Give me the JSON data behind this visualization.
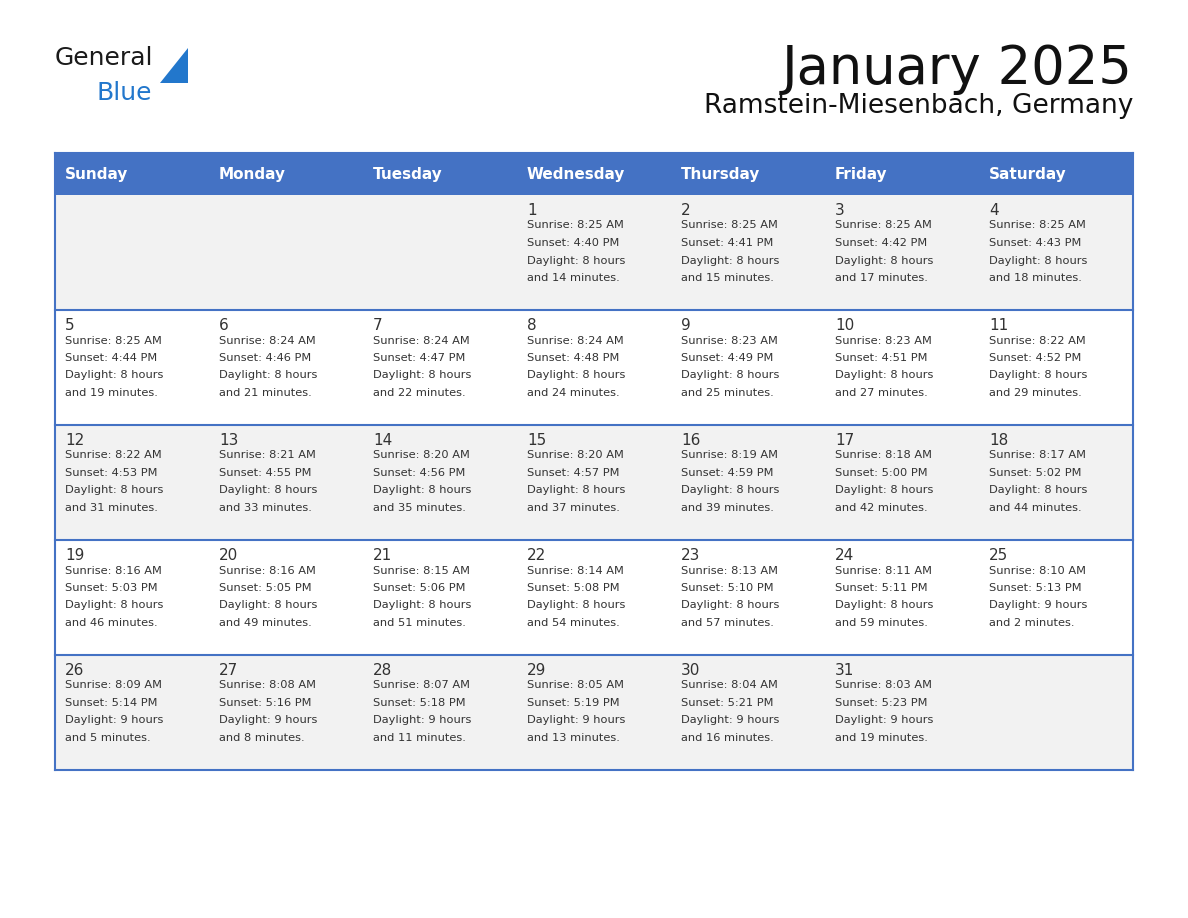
{
  "title": "January 2025",
  "subtitle": "Ramstein-Miesenbach, Germany",
  "days_of_week": [
    "Sunday",
    "Monday",
    "Tuesday",
    "Wednesday",
    "Thursday",
    "Friday",
    "Saturday"
  ],
  "header_bg": "#4472C4",
  "header_text": "#FFFFFF",
  "row_bg": [
    "#F2F2F2",
    "#FFFFFF",
    "#F2F2F2",
    "#FFFFFF",
    "#F2F2F2"
  ],
  "cell_border": "#4472C4",
  "row_border": "#4472C4",
  "day_num_color": "#333333",
  "text_color": "#333333",
  "logo_general_color": "#1a1a1a",
  "logo_blue_color": "#2277CC",
  "logo_triangle_color": "#2277CC",
  "calendar_data": [
    [
      null,
      null,
      null,
      {
        "day": 1,
        "sunrise": "8:25 AM",
        "sunset": "4:40 PM",
        "daylight": "8 hours and 14 minutes."
      },
      {
        "day": 2,
        "sunrise": "8:25 AM",
        "sunset": "4:41 PM",
        "daylight": "8 hours and 15 minutes."
      },
      {
        "day": 3,
        "sunrise": "8:25 AM",
        "sunset": "4:42 PM",
        "daylight": "8 hours and 17 minutes."
      },
      {
        "day": 4,
        "sunrise": "8:25 AM",
        "sunset": "4:43 PM",
        "daylight": "8 hours and 18 minutes."
      }
    ],
    [
      {
        "day": 5,
        "sunrise": "8:25 AM",
        "sunset": "4:44 PM",
        "daylight": "8 hours and 19 minutes."
      },
      {
        "day": 6,
        "sunrise": "8:24 AM",
        "sunset": "4:46 PM",
        "daylight": "8 hours and 21 minutes."
      },
      {
        "day": 7,
        "sunrise": "8:24 AM",
        "sunset": "4:47 PM",
        "daylight": "8 hours and 22 minutes."
      },
      {
        "day": 8,
        "sunrise": "8:24 AM",
        "sunset": "4:48 PM",
        "daylight": "8 hours and 24 minutes."
      },
      {
        "day": 9,
        "sunrise": "8:23 AM",
        "sunset": "4:49 PM",
        "daylight": "8 hours and 25 minutes."
      },
      {
        "day": 10,
        "sunrise": "8:23 AM",
        "sunset": "4:51 PM",
        "daylight": "8 hours and 27 minutes."
      },
      {
        "day": 11,
        "sunrise": "8:22 AM",
        "sunset": "4:52 PM",
        "daylight": "8 hours and 29 minutes."
      }
    ],
    [
      {
        "day": 12,
        "sunrise": "8:22 AM",
        "sunset": "4:53 PM",
        "daylight": "8 hours and 31 minutes."
      },
      {
        "day": 13,
        "sunrise": "8:21 AM",
        "sunset": "4:55 PM",
        "daylight": "8 hours and 33 minutes."
      },
      {
        "day": 14,
        "sunrise": "8:20 AM",
        "sunset": "4:56 PM",
        "daylight": "8 hours and 35 minutes."
      },
      {
        "day": 15,
        "sunrise": "8:20 AM",
        "sunset": "4:57 PM",
        "daylight": "8 hours and 37 minutes."
      },
      {
        "day": 16,
        "sunrise": "8:19 AM",
        "sunset": "4:59 PM",
        "daylight": "8 hours and 39 minutes."
      },
      {
        "day": 17,
        "sunrise": "8:18 AM",
        "sunset": "5:00 PM",
        "daylight": "8 hours and 42 minutes."
      },
      {
        "day": 18,
        "sunrise": "8:17 AM",
        "sunset": "5:02 PM",
        "daylight": "8 hours and 44 minutes."
      }
    ],
    [
      {
        "day": 19,
        "sunrise": "8:16 AM",
        "sunset": "5:03 PM",
        "daylight": "8 hours and 46 minutes."
      },
      {
        "day": 20,
        "sunrise": "8:16 AM",
        "sunset": "5:05 PM",
        "daylight": "8 hours and 49 minutes."
      },
      {
        "day": 21,
        "sunrise": "8:15 AM",
        "sunset": "5:06 PM",
        "daylight": "8 hours and 51 minutes."
      },
      {
        "day": 22,
        "sunrise": "8:14 AM",
        "sunset": "5:08 PM",
        "daylight": "8 hours and 54 minutes."
      },
      {
        "day": 23,
        "sunrise": "8:13 AM",
        "sunset": "5:10 PM",
        "daylight": "8 hours and 57 minutes."
      },
      {
        "day": 24,
        "sunrise": "8:11 AM",
        "sunset": "5:11 PM",
        "daylight": "8 hours and 59 minutes."
      },
      {
        "day": 25,
        "sunrise": "8:10 AM",
        "sunset": "5:13 PM",
        "daylight": "9 hours and 2 minutes."
      }
    ],
    [
      {
        "day": 26,
        "sunrise": "8:09 AM",
        "sunset": "5:14 PM",
        "daylight": "9 hours and 5 minutes."
      },
      {
        "day": 27,
        "sunrise": "8:08 AM",
        "sunset": "5:16 PM",
        "daylight": "9 hours and 8 minutes."
      },
      {
        "day": 28,
        "sunrise": "8:07 AM",
        "sunset": "5:18 PM",
        "daylight": "9 hours and 11 minutes."
      },
      {
        "day": 29,
        "sunrise": "8:05 AM",
        "sunset": "5:19 PM",
        "daylight": "9 hours and 13 minutes."
      },
      {
        "day": 30,
        "sunrise": "8:04 AM",
        "sunset": "5:21 PM",
        "daylight": "9 hours and 16 minutes."
      },
      {
        "day": 31,
        "sunrise": "8:03 AM",
        "sunset": "5:23 PM",
        "daylight": "9 hours and 19 minutes."
      },
      null
    ]
  ],
  "fig_width": 11.88,
  "fig_height": 9.18,
  "dpi": 100
}
